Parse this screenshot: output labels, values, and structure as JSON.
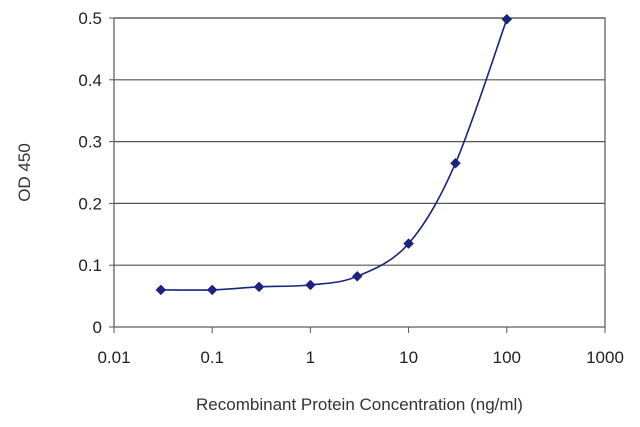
{
  "chart_data": {
    "type": "scatter",
    "title": "",
    "xlabel": "Recombinant Protein Concentration (ng/ml)",
    "ylabel": "OD 450",
    "x_scale": "log",
    "xlim": [
      0.01,
      1000
    ],
    "ylim": [
      0,
      0.5
    ],
    "x_ticks": [
      0.01,
      0.1,
      1,
      10,
      100,
      1000
    ],
    "x_tick_labels": [
      "0.01",
      "0.1",
      "1",
      "10",
      "100",
      "1000"
    ],
    "y_ticks": [
      0,
      0.1,
      0.2,
      0.3,
      0.4,
      0.5
    ],
    "y_tick_labels": [
      "0",
      "0.1",
      "0.2",
      "0.3",
      "0.4",
      "0.5"
    ],
    "grid": "horizontal",
    "legend": "none",
    "series": [
      {
        "x": [
          0.03,
          0.1,
          0.3,
          1,
          3,
          10,
          30,
          100
        ],
        "y": [
          0.06,
          0.06,
          0.065,
          0.068,
          0.082,
          0.135,
          0.265,
          0.498
        ],
        "marker": "diamond",
        "fit": "smooth-curve",
        "color": "#1a237e"
      }
    ],
    "colors": {
      "series": "#1a237e",
      "grid": "#555555",
      "axis": "#555555"
    }
  }
}
